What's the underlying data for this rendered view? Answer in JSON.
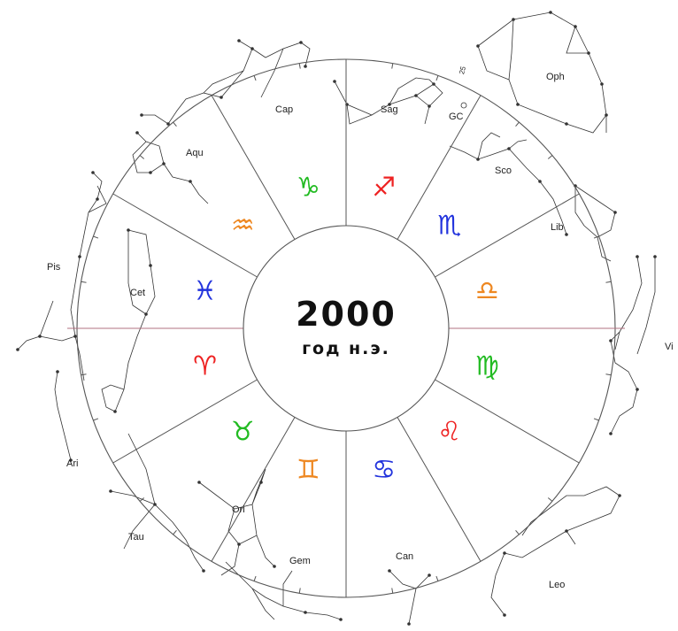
{
  "center": {
    "year": "2000",
    "era": "год н.э."
  },
  "constellations": {
    "oph": "Oph",
    "sag": "Sag",
    "gc": "GC",
    "cap": "Cap",
    "aqu": "Aqu",
    "sco": "Sco",
    "lib": "Lib",
    "pis": "Pis",
    "cet": "Cet",
    "vir": "Vi",
    "ari": "Ari",
    "tau": "Tau",
    "ori": "Ori",
    "gem": "Gem",
    "can": "Can",
    "leo": "Leo"
  },
  "small_marks": {
    "mark_25": "25"
  },
  "zodiac_signs": [
    {
      "name": "capricorn",
      "symbol": "♑",
      "color": "#22bb22"
    },
    {
      "name": "sagittarius",
      "symbol": "♐",
      "color": "#ee2222"
    },
    {
      "name": "scorpio",
      "symbol": "♏",
      "color": "#2233dd"
    },
    {
      "name": "libra",
      "symbol": "♎",
      "color": "#ee8822"
    },
    {
      "name": "virgo",
      "symbol": "♍",
      "color": "#22bb22"
    },
    {
      "name": "leo",
      "symbol": "♌",
      "color": "#ee2222"
    },
    {
      "name": "cancer",
      "symbol": "♋",
      "color": "#2233dd"
    },
    {
      "name": "gemini",
      "symbol": "♊",
      "color": "#ee8822"
    },
    {
      "name": "taurus",
      "symbol": "♉",
      "color": "#22bb22"
    },
    {
      "name": "aries",
      "symbol": "♈",
      "color": "#ee2222"
    },
    {
      "name": "pisces",
      "symbol": "♓",
      "color": "#2233dd"
    },
    {
      "name": "aquarius",
      "symbol": "♒",
      "color": "#ee8822"
    }
  ]
}
